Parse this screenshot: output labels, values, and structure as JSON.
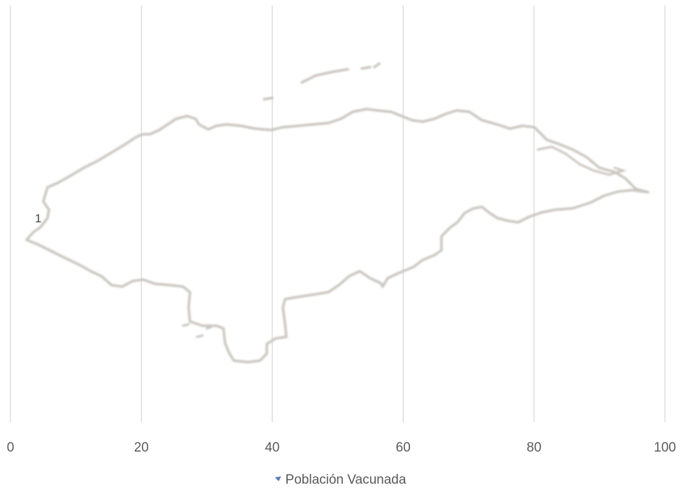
{
  "chart_data": {
    "type": "scatter",
    "title": "",
    "xlabel": "",
    "ylabel": "",
    "xlim": [
      0,
      100
    ],
    "x_ticks": [
      "0",
      "20",
      "40",
      "60",
      "80",
      "100"
    ],
    "grid": "vertical",
    "background": "map-outline-honduras",
    "legend_position": "bottom",
    "series": [
      {
        "name": "Población Vacunada",
        "color": "#5b7ab8",
        "points": [
          {
            "x": 3.5,
            "label": "1"
          }
        ]
      }
    ]
  },
  "colors": {
    "grid": "#d9d9d9",
    "map_outline": "#c9c4bd",
    "axis_text": "#595959"
  }
}
